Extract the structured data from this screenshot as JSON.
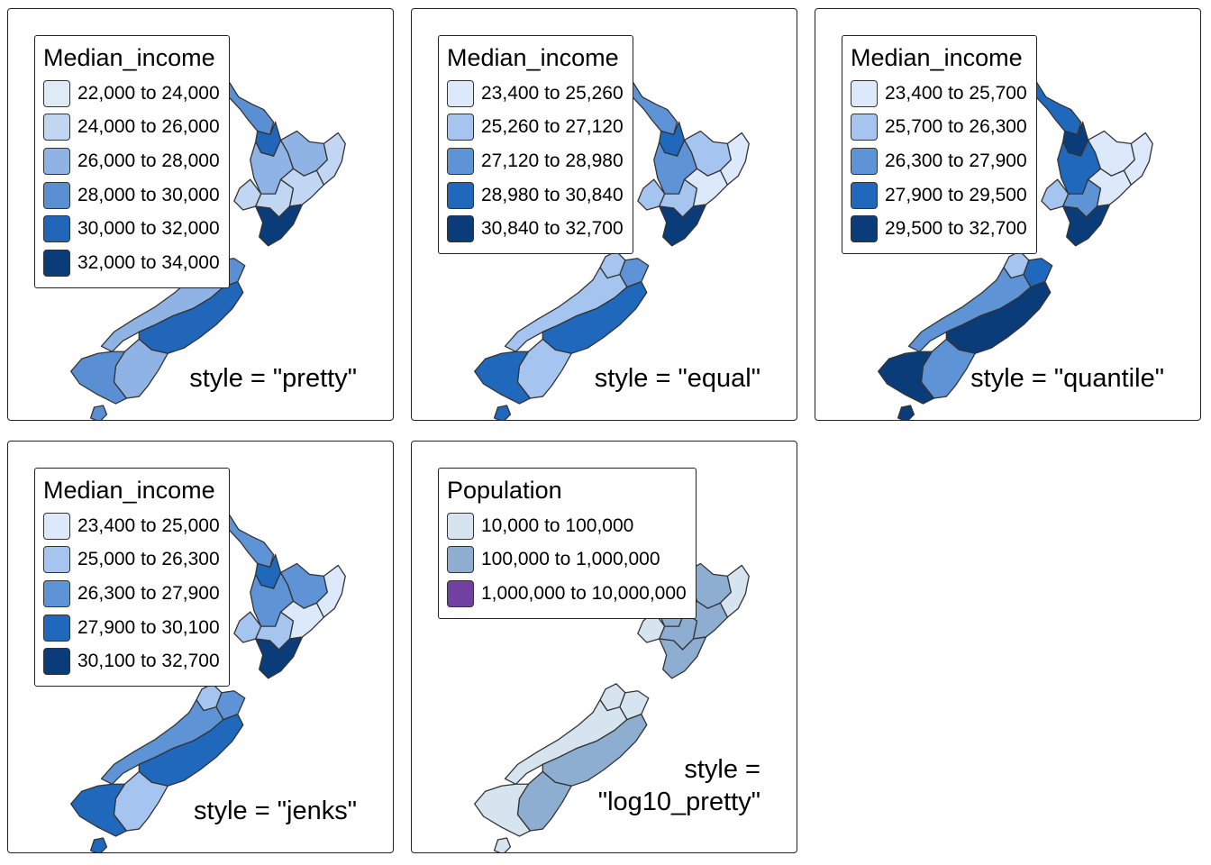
{
  "panels": [
    {
      "legend_title": "Median_income",
      "style_label": "style = \"pretty\"",
      "classes": [
        {
          "label": "22,000 to 24,000",
          "color": "#deebf7"
        },
        {
          "label": "24,000 to 26,000",
          "color": "#c1d6f2"
        },
        {
          "label": "26,000 to 28,000",
          "color": "#8fb3e5"
        },
        {
          "label": "28,000 to 30,000",
          "color": "#5b8fd4"
        },
        {
          "label": "30,000 to 32,000",
          "color": "#2166b8"
        },
        {
          "label": "32,000 to 34,000",
          "color": "#0b3c7a"
        }
      ],
      "region_colors": {
        "northland": "#5b8fd4",
        "auckland": "#2166b8",
        "waikato": "#8fb3e5",
        "bay": "#8fb3e5",
        "gisborne": "#c1d6f2",
        "taranaki": "#c1d6f2",
        "manawatu": "#c1d6f2",
        "hawkes": "#c1d6f2",
        "wellington": "#0b3c7a",
        "nelson": "#8fb3e5",
        "marlborough": "#5b8fd4",
        "westcoast": "#8fb3e5",
        "canterbury": "#2166b8",
        "otago": "#8fb3e5",
        "southland": "#5b8fd4",
        "stewart": "#5b8fd4"
      }
    },
    {
      "legend_title": "Median_income",
      "style_label": "style = \"equal\"",
      "classes": [
        {
          "label": "23,400 to 25,260",
          "color": "#dbe9fb"
        },
        {
          "label": "25,260 to 27,120",
          "color": "#a5c4f0"
        },
        {
          "label": "27,120 to 28,980",
          "color": "#5e93d6"
        },
        {
          "label": "28,980 to 30,840",
          "color": "#1f68bc"
        },
        {
          "label": "30,840 to 32,700",
          "color": "#0b3c7a"
        }
      ],
      "region_colors": {
        "northland": "#5e93d6",
        "auckland": "#1f68bc",
        "waikato": "#5e93d6",
        "bay": "#a5c4f0",
        "gisborne": "#dbe9fb",
        "taranaki": "#a5c4f0",
        "manawatu": "#a5c4f0",
        "hawkes": "#dbe9fb",
        "wellington": "#0b3c7a",
        "nelson": "#a5c4f0",
        "marlborough": "#5e93d6",
        "westcoast": "#a5c4f0",
        "canterbury": "#1f68bc",
        "otago": "#a5c4f0",
        "southland": "#1f68bc",
        "stewart": "#1f68bc"
      }
    },
    {
      "legend_title": "Median_income",
      "style_label": "style = \"quantile\"",
      "classes": [
        {
          "label": "23,400 to 25,700",
          "color": "#dbe9fb"
        },
        {
          "label": "25,700 to 26,300",
          "color": "#a5c4f0"
        },
        {
          "label": "26,300 to 27,900",
          "color": "#5e93d6"
        },
        {
          "label": "27,900 to 29,500",
          "color": "#1f68bc"
        },
        {
          "label": "29,500 to 32,700",
          "color": "#0b3c7a"
        }
      ],
      "region_colors": {
        "northland": "#1f68bc",
        "auckland": "#0b3c7a",
        "waikato": "#1f68bc",
        "bay": "#dbe9fb",
        "gisborne": "#dbe9fb",
        "taranaki": "#a5c4f0",
        "manawatu": "#5e93d6",
        "hawkes": "#dbe9fb",
        "wellington": "#0b3c7a",
        "nelson": "#a5c4f0",
        "marlborough": "#1f68bc",
        "westcoast": "#5e93d6",
        "canterbury": "#0b3c7a",
        "otago": "#5e93d6",
        "southland": "#0b3c7a",
        "stewart": "#0b3c7a"
      }
    },
    {
      "legend_title": "Median_income",
      "style_label": "style = \"jenks\"",
      "classes": [
        {
          "label": "23,400 to 25,000",
          "color": "#dbe9fb"
        },
        {
          "label": "25,000 to 26,300",
          "color": "#a5c4f0"
        },
        {
          "label": "26,300 to 27,900",
          "color": "#5e93d6"
        },
        {
          "label": "27,900 to 30,100",
          "color": "#1f68bc"
        },
        {
          "label": "30,100 to 32,700",
          "color": "#0b3c7a"
        }
      ],
      "region_colors": {
        "northland": "#5e93d6",
        "auckland": "#1f68bc",
        "waikato": "#5e93d6",
        "bay": "#5e93d6",
        "gisborne": "#dbe9fb",
        "taranaki": "#a5c4f0",
        "manawatu": "#a5c4f0",
        "hawkes": "#dbe9fb",
        "wellington": "#0b3c7a",
        "nelson": "#a5c4f0",
        "marlborough": "#5e93d6",
        "westcoast": "#5e93d6",
        "canterbury": "#1f68bc",
        "otago": "#a5c4f0",
        "southland": "#1f68bc",
        "stewart": "#1f68bc"
      }
    },
    {
      "legend_title": "Population",
      "style_label": "style =\n\"log10_pretty\"",
      "classes": [
        {
          "label": "10,000 to 100,000",
          "color": "#d6e4ef"
        },
        {
          "label": "100,000 to 1,000,000",
          "color": "#8dadd1"
        },
        {
          "label": "1,000,000 to 10,000,000",
          "color": "#7140a0"
        }
      ],
      "region_colors": {
        "northland": "#d6e4ef",
        "auckland": "#7140a0",
        "waikato": "#8dadd1",
        "bay": "#8dadd1",
        "gisborne": "#d6e4ef",
        "taranaki": "#d6e4ef",
        "manawatu": "#8dadd1",
        "hawkes": "#8dadd1",
        "wellington": "#8dadd1",
        "nelson": "#d6e4ef",
        "marlborough": "#d6e4ef",
        "westcoast": "#d6e4ef",
        "canterbury": "#8dadd1",
        "otago": "#8dadd1",
        "southland": "#d6e4ef",
        "stewart": "#d6e4ef"
      }
    }
  ]
}
